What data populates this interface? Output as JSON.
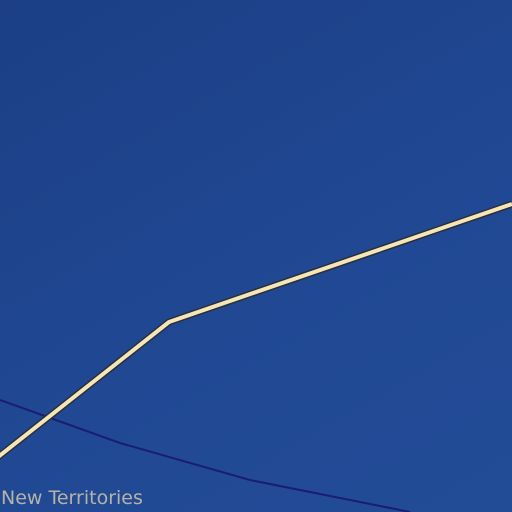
{
  "map": {
    "colors": {
      "water": "#204893",
      "road": "#f4e6b9",
      "road_casing": "#2a2f3a",
      "boundary": "#1a1d73",
      "label": "#b6b3a6"
    },
    "labels": {
      "region": "New Territories"
    },
    "features": [
      {
        "kind": "road",
        "name": "road-line"
      },
      {
        "kind": "boundary",
        "name": "district-boundary-line"
      }
    ]
  }
}
